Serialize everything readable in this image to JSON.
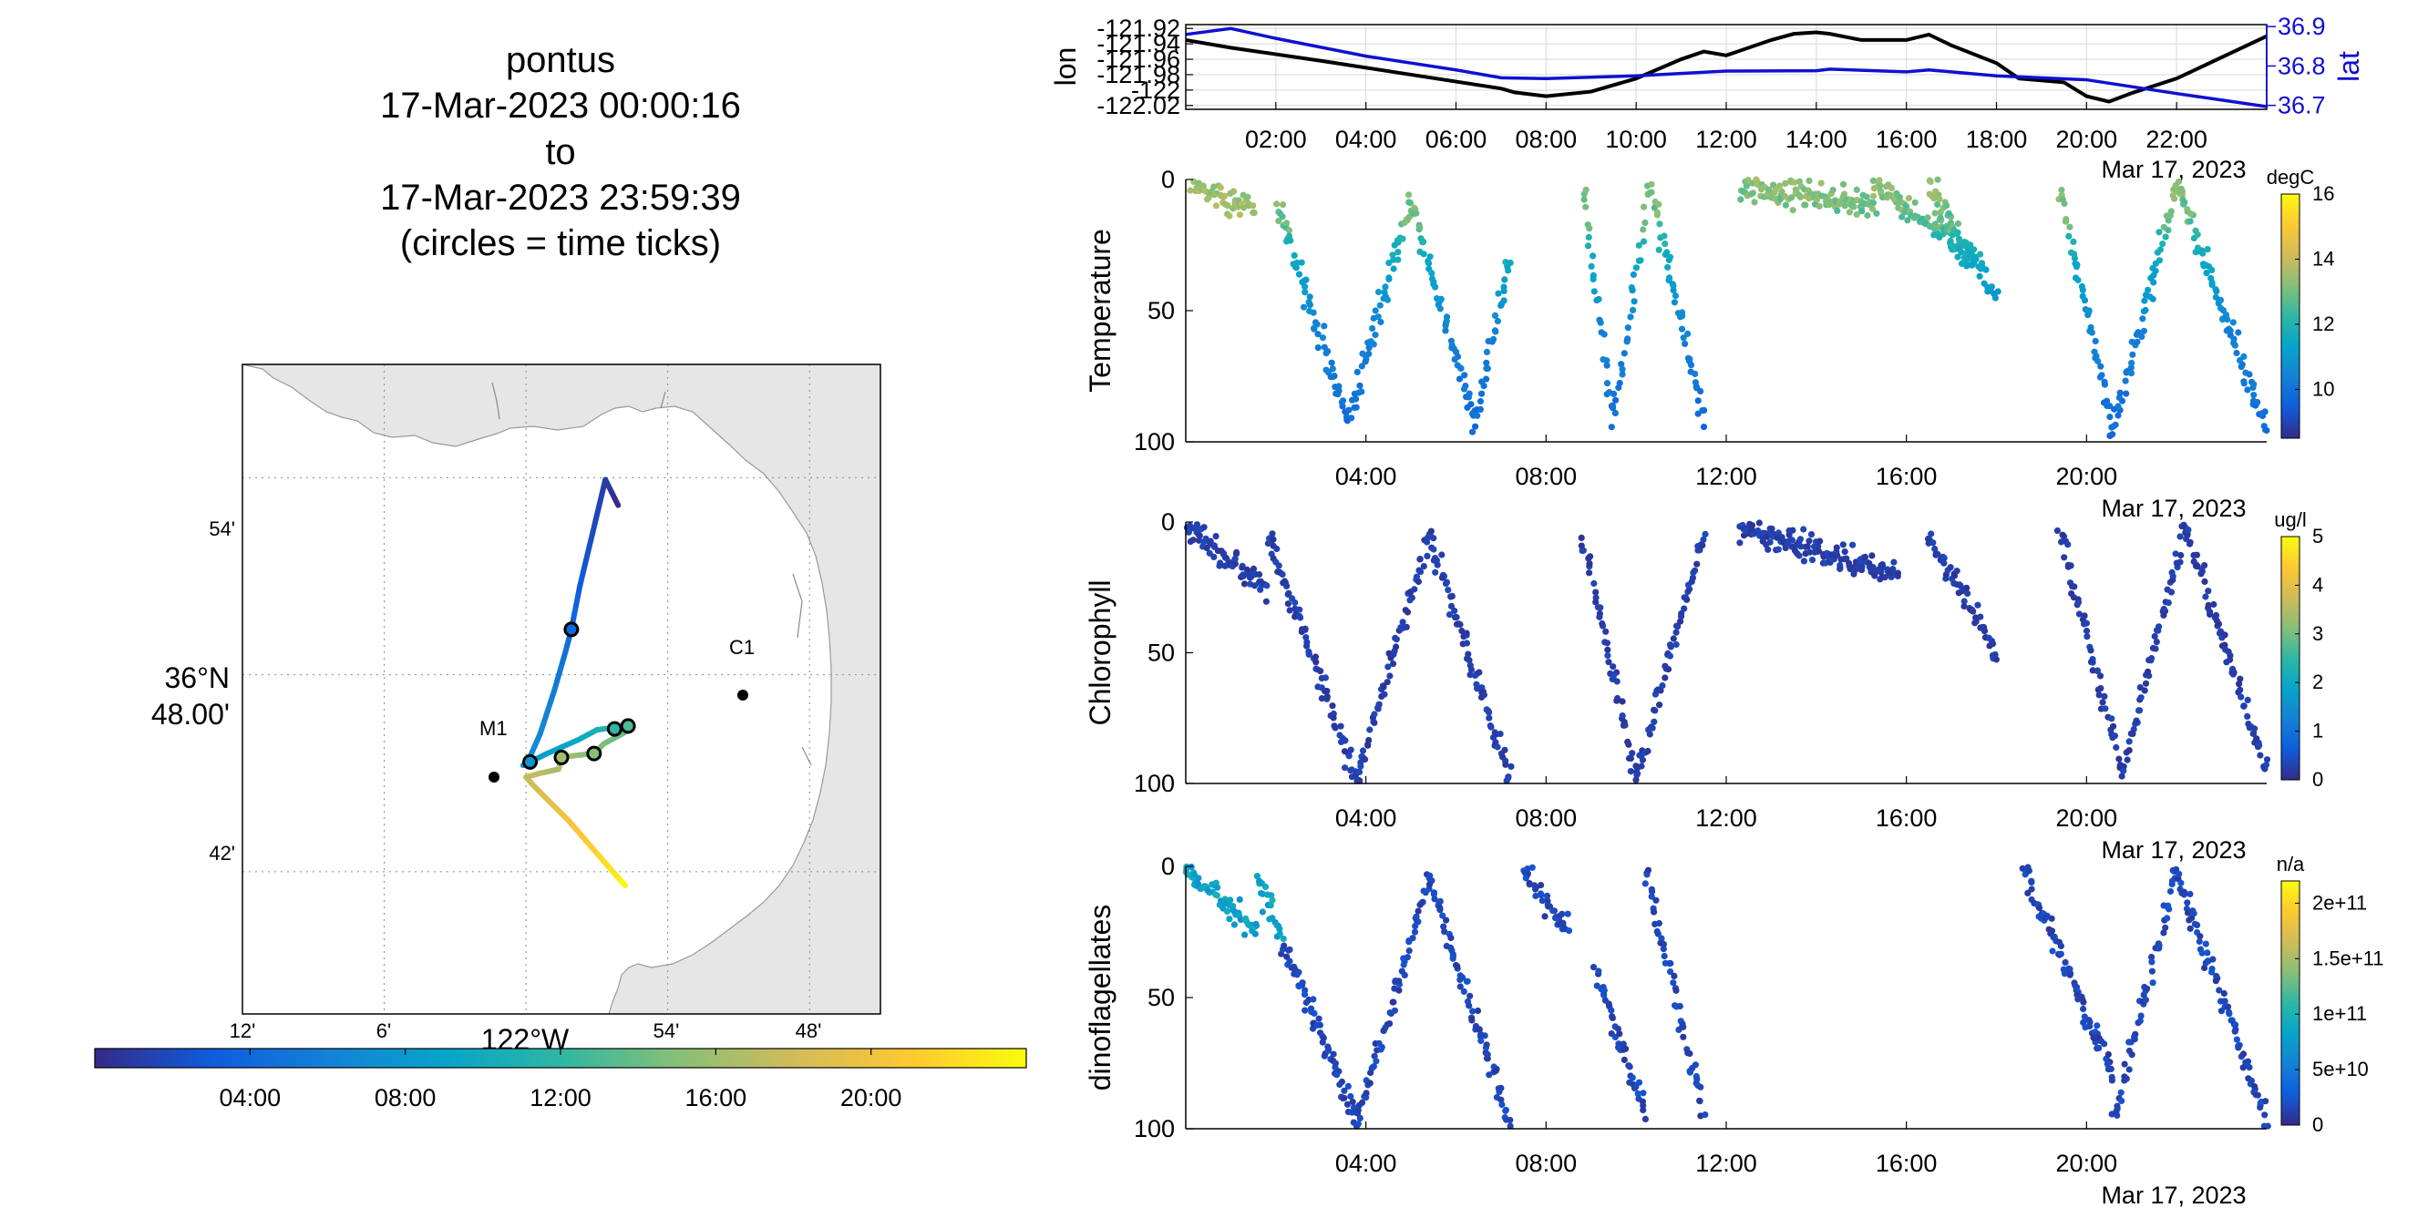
{
  "colors": {
    "black_line": "#000000",
    "lat_line": "#1010d0",
    "land": "#e6e6e6",
    "parula": [
      "#352a87",
      "#0f5cdd",
      "#1481d6",
      "#06a4ca",
      "#2eb7a4",
      "#87bf77",
      "#d1bb59",
      "#fec832",
      "#f9fb0e"
    ]
  },
  "title": {
    "lines": [
      "pontus",
      "17-Mar-2023 00:00:16",
      "to",
      "17-Mar-2023 23:59:39",
      "(circles = time ticks)"
    ]
  },
  "map": {
    "lat_ticks": [
      "54'",
      "36°N 48.00'",
      "42'"
    ],
    "lat_tick_lines": [
      "54'",
      "36",
      "48.00'",
      "42'"
    ],
    "lon_ticks": [
      "12'",
      "6'",
      "122°W",
      "54'",
      "48'"
    ],
    "stations": [
      {
        "name": "C1",
        "lon": -121.847,
        "lat": 36.797
      },
      {
        "name": "M1",
        "lon": -122.029,
        "lat": 36.747
      }
    ],
    "track": {
      "start_hour": 0,
      "end_hour": 24,
      "points": [
        [
          -121.935,
          36.886,
          0.0
        ],
        [
          -121.944,
          36.899,
          1.0
        ],
        [
          -121.953,
          36.872,
          2.0
        ],
        [
          -121.962,
          36.845,
          3.0
        ],
        [
          -121.968,
          36.823,
          4.0
        ],
        [
          -121.972,
          36.812,
          4.5
        ],
        [
          -121.98,
          36.792,
          5.5
        ],
        [
          -121.99,
          36.77,
          6.5
        ],
        [
          -121.998,
          36.757,
          7.3
        ],
        [
          -122.002,
          36.754,
          7.8
        ],
        [
          -121.985,
          36.76,
          8.5
        ],
        [
          -121.963,
          36.767,
          9.5
        ],
        [
          -121.95,
          36.772,
          10.5
        ],
        [
          -121.94,
          36.773,
          11.5
        ],
        [
          -121.935,
          36.772,
          12.5
        ],
        [
          -121.928,
          36.774,
          13.0
        ],
        [
          -121.925,
          36.773,
          13.5
        ],
        [
          -121.932,
          36.77,
          14.0
        ],
        [
          -121.945,
          36.765,
          14.5
        ],
        [
          -121.952,
          36.76,
          15.0
        ],
        [
          -121.965,
          36.759,
          15.5
        ],
        [
          -121.975,
          36.758,
          16.0
        ],
        [
          -121.977,
          36.752,
          16.5
        ],
        [
          -121.99,
          36.75,
          17.0
        ],
        [
          -122.0,
          36.748,
          17.5
        ],
        [
          -121.995,
          36.744,
          18.0
        ],
        [
          -121.984,
          36.736,
          19.0
        ],
        [
          -121.97,
          36.726,
          20.0
        ],
        [
          -121.958,
          36.716,
          21.0
        ],
        [
          -121.946,
          36.706,
          22.0
        ],
        [
          -121.935,
          36.697,
          23.0
        ],
        [
          -121.93,
          36.693,
          24.0
        ]
      ],
      "circles_hours": [
        4,
        8,
        12,
        13,
        15,
        16
      ]
    }
  },
  "time_colorbar": {
    "ticks": [
      "04:00",
      "08:00",
      "12:00",
      "16:00",
      "20:00"
    ]
  },
  "panels": {
    "lonlat": {
      "left_label": "lon",
      "right_label": "lat",
      "lon_ticks": [
        "-121.92",
        "-121.94",
        "-121.96",
        "-121.98",
        "-122",
        "-122.02"
      ],
      "lat_ticks": [
        "36.9",
        "36.8",
        "36.7"
      ],
      "x_ticks": [
        "02:00",
        "04:00",
        "06:00",
        "08:00",
        "10:00",
        "12:00",
        "14:00",
        "16:00",
        "18:00",
        "20:00",
        "22:00"
      ],
      "date_label": "Mar 17, 2023"
    },
    "scatter": [
      {
        "ylabel": "Temperature",
        "unit": "degC",
        "cbar_ticks": [
          "16",
          "14",
          "12",
          "10"
        ],
        "y_ticks": [
          "0",
          "50",
          "100"
        ],
        "x_ticks": [
          "04:00",
          "08:00",
          "12:00",
          "16:00",
          "20:00"
        ],
        "date_label": "Mar 17, 2023"
      },
      {
        "ylabel": "Chlorophyll",
        "unit": "ug/l",
        "cbar_ticks": [
          "5",
          "4",
          "3",
          "2",
          "1",
          "0"
        ],
        "y_ticks": [
          "0",
          "50",
          "100"
        ],
        "x_ticks": [
          "04:00",
          "08:00",
          "12:00",
          "16:00",
          "20:00"
        ],
        "date_label": "Mar 17, 2023"
      },
      {
        "ylabel": "dinoflagellates",
        "unit": "n/a",
        "cbar_ticks": [
          "2e+11",
          "1.5e+11",
          "1e+11",
          "5e+10",
          "0"
        ],
        "y_ticks": [
          "0",
          "50",
          "100"
        ],
        "x_ticks": [
          "04:00",
          "08:00",
          "12:00",
          "16:00",
          "20:00"
        ],
        "date_label": "Mar 17, 2023"
      }
    ]
  },
  "chart_data": [
    {
      "type": "line",
      "ylabel": "lon",
      "y2label": "lat",
      "x_unit": "hour",
      "series": [
        {
          "name": "lon",
          "x": [
            0,
            1,
            3,
            5,
            7,
            7.3,
            8,
            9,
            10,
            11,
            11.5,
            12,
            13,
            13.5,
            14,
            14.3,
            15,
            16,
            16.5,
            17,
            18,
            18.5,
            19.5,
            20,
            20.5,
            21,
            22,
            24
          ],
          "y": [
            -121.935,
            -121.945,
            -121.962,
            -121.98,
            -121.998,
            -122.003,
            -122.008,
            -122.002,
            -121.985,
            -121.96,
            -121.95,
            -121.955,
            -121.935,
            -121.927,
            -121.925,
            -121.927,
            -121.935,
            -121.935,
            -121.928,
            -121.942,
            -121.965,
            -121.985,
            -121.99,
            -122.008,
            -122.015,
            -122.004,
            -121.985,
            -121.93
          ]
        },
        {
          "name": "lat",
          "x": [
            0,
            1,
            2,
            4,
            6,
            7,
            8,
            10,
            12,
            14,
            14.3,
            16,
            16.5,
            18,
            20,
            22,
            24
          ],
          "y": [
            36.88,
            36.895,
            36.87,
            36.825,
            36.79,
            36.77,
            36.768,
            36.775,
            36.787,
            36.788,
            36.792,
            36.785,
            36.79,
            36.775,
            36.765,
            36.73,
            36.697
          ]
        }
      ],
      "ylim": [
        -122.025,
        -121.915
      ],
      "y2lim": [
        36.69,
        36.905
      ],
      "xlim": [
        0,
        24
      ]
    },
    {
      "type": "scatter",
      "ylabel": "Temperature",
      "x_unit": "hour",
      "y_unit": "m",
      "ylim": [
        100,
        0
      ],
      "xlim": [
        0,
        24
      ],
      "clim": [
        8.5,
        16
      ],
      "casts": [
        [
          0.15,
          1.5,
          2.5,
          10
        ],
        [
          2.0,
          3.6,
          8,
          92
        ],
        [
          3.6,
          5.0,
          92,
          8
        ],
        [
          5.0,
          6.4,
          8,
          92
        ],
        [
          6.4,
          7.2,
          92,
          30
        ],
        [
          8.8,
          9.5,
          2,
          92
        ],
        [
          9.5,
          10.3,
          92,
          2
        ],
        [
          10.3,
          11.5,
          2,
          92
        ],
        [
          12.3,
          15.3,
          2,
          10
        ],
        [
          15.3,
          17.5,
          2,
          30
        ],
        [
          16.5,
          18.0,
          2,
          45
        ],
        [
          19.4,
          20.6,
          2,
          96
        ],
        [
          20.6,
          22.0,
          96,
          2
        ],
        [
          22.0,
          24.0,
          2,
          96
        ]
      ]
    },
    {
      "type": "scatter",
      "ylabel": "Chlorophyll",
      "x_unit": "hour",
      "y_unit": "m",
      "ylim": [
        100,
        0
      ],
      "xlim": [
        0,
        24
      ],
      "clim": [
        0,
        5
      ],
      "casts": [
        [
          0.0,
          1.8,
          1,
          25
        ],
        [
          1.8,
          3.8,
          5,
          98
        ],
        [
          3.8,
          5.4,
          98,
          5
        ],
        [
          5.4,
          7.2,
          5,
          98
        ],
        [
          8.8,
          10.0,
          5,
          98
        ],
        [
          10.0,
          11.5,
          98,
          5
        ],
        [
          12.3,
          15.8,
          2,
          20
        ],
        [
          16.5,
          18.0,
          5,
          50
        ],
        [
          19.4,
          20.8,
          2,
          96
        ],
        [
          20.8,
          22.2,
          96,
          2
        ],
        [
          22.2,
          24.0,
          2,
          96
        ]
      ]
    },
    {
      "type": "scatter",
      "ylabel": "dinoflagellates",
      "x_unit": "hour",
      "y_unit": "m",
      "ylim": [
        100,
        0
      ],
      "xlim": [
        0,
        24
      ],
      "clim": [
        0,
        220000000000.0
      ],
      "casts": [
        [
          0.0,
          1.6,
          1,
          25
        ],
        [
          1.6,
          3.8,
          5,
          98
        ],
        [
          3.8,
          5.4,
          98,
          5
        ],
        [
          5.4,
          7.2,
          5,
          98
        ],
        [
          7.5,
          8.5,
          2,
          25
        ],
        [
          9.1,
          10.2,
          40,
          95
        ],
        [
          10.2,
          11.5,
          2,
          95
        ],
        [
          18.6,
          20.6,
          2,
          80
        ],
        [
          20.6,
          22.0,
          96,
          2
        ],
        [
          22.0,
          24.0,
          2,
          98
        ]
      ]
    }
  ]
}
